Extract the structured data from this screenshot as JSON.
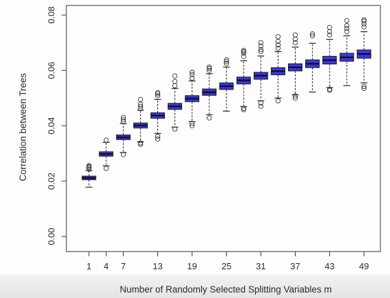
{
  "chart_data": {
    "type": "boxplot",
    "title": "",
    "xlabel": "Number of Randomly Selected Splitting Variables m",
    "ylabel": "Correlation between Trees",
    "ylim": [
      0,
      0.08
    ],
    "y_ticks": [
      0.0,
      0.02,
      0.04,
      0.06,
      0.08
    ],
    "y_tick_labels": [
      "0.00",
      "0.02",
      "0.04",
      "0.06",
      "0.08"
    ],
    "x_tick_labels": [
      "1",
      "4",
      "7",
      "13",
      "19",
      "25",
      "31",
      "37",
      "43",
      "49"
    ],
    "x_tick_values": [
      1,
      4,
      7,
      13,
      19,
      25,
      31,
      37,
      43,
      49
    ],
    "box_color": "#3a36e6",
    "box_edge_color": "#1a1a1a",
    "grid": false,
    "boxes": [
      {
        "m": 1,
        "q1": 0.0205,
        "median": 0.0211,
        "q3": 0.0218,
        "lo": 0.0178,
        "hi": 0.0238,
        "outliers": [
          0.0243,
          0.0249,
          0.0252,
          0.0256
        ]
      },
      {
        "m": 4,
        "q1": 0.029,
        "median": 0.0298,
        "q3": 0.0306,
        "lo": 0.0255,
        "hi": 0.034,
        "outliers": [
          0.0246,
          0.0348
        ]
      },
      {
        "m": 7,
        "q1": 0.035,
        "median": 0.0358,
        "q3": 0.0367,
        "lo": 0.0303,
        "hi": 0.0408,
        "outliers": [
          0.0296,
          0.0415,
          0.0422,
          0.043
        ]
      },
      {
        "m": 10,
        "q1": 0.0392,
        "median": 0.0401,
        "q3": 0.041,
        "lo": 0.0342,
        "hi": 0.0456,
        "outliers": [
          0.0333,
          0.0338,
          0.0462,
          0.047,
          0.0478,
          0.0495
        ]
      },
      {
        "m": 13,
        "q1": 0.0427,
        "median": 0.0437,
        "q3": 0.0447,
        "lo": 0.0372,
        "hi": 0.0495,
        "outliers": [
          0.0352,
          0.0362,
          0.0508,
          0.0515,
          0.052
        ]
      },
      {
        "m": 16,
        "q1": 0.0459,
        "median": 0.047,
        "q3": 0.0481,
        "lo": 0.0395,
        "hi": 0.0535,
        "outliers": [
          0.0388,
          0.0545,
          0.056,
          0.058
        ]
      },
      {
        "m": 19,
        "q1": 0.0487,
        "median": 0.0498,
        "q3": 0.0509,
        "lo": 0.0415,
        "hi": 0.0562,
        "outliers": [
          0.04,
          0.0408,
          0.0572,
          0.0585,
          0.0593
        ]
      },
      {
        "m": 22,
        "q1": 0.051,
        "median": 0.0521,
        "q3": 0.0533,
        "lo": 0.044,
        "hi": 0.0588,
        "outliers": [
          0.0428,
          0.06,
          0.0607,
          0.0612
        ]
      },
      {
        "m": 25,
        "q1": 0.0531,
        "median": 0.0543,
        "q3": 0.0555,
        "lo": 0.0453,
        "hi": 0.0612,
        "outliers": [
          0.0625,
          0.0632,
          0.0638
        ]
      },
      {
        "m": 28,
        "q1": 0.0551,
        "median": 0.0564,
        "q3": 0.0576,
        "lo": 0.047,
        "hi": 0.0635,
        "outliers": [
          0.0458,
          0.0463,
          0.065,
          0.0662,
          0.0668,
          0.0672
        ]
      },
      {
        "m": 31,
        "q1": 0.0568,
        "median": 0.0581,
        "q3": 0.0593,
        "lo": 0.049,
        "hi": 0.0652,
        "outliers": [
          0.047,
          0.0482,
          0.0668,
          0.0675,
          0.0688,
          0.07
        ]
      },
      {
        "m": 34,
        "q1": 0.0584,
        "median": 0.0597,
        "q3": 0.061,
        "lo": 0.05,
        "hi": 0.0668,
        "outliers": [
          0.049,
          0.068,
          0.0692,
          0.0705,
          0.0722
        ]
      },
      {
        "m": 37,
        "q1": 0.0598,
        "median": 0.0611,
        "q3": 0.0624,
        "lo": 0.0512,
        "hi": 0.0684,
        "outliers": [
          0.05,
          0.0508,
          0.07,
          0.0713,
          0.0728
        ]
      },
      {
        "m": 40,
        "q1": 0.061,
        "median": 0.0624,
        "q3": 0.0638,
        "lo": 0.0522,
        "hi": 0.0698,
        "outliers": [
          0.0725,
          0.0732
        ]
      },
      {
        "m": 43,
        "q1": 0.0623,
        "median": 0.0637,
        "q3": 0.0651,
        "lo": 0.0538,
        "hi": 0.0712,
        "outliers": [
          0.0528,
          0.0532,
          0.0728,
          0.074,
          0.0755
        ]
      },
      {
        "m": 46,
        "q1": 0.0633,
        "median": 0.0647,
        "q3": 0.0662,
        "lo": 0.0545,
        "hi": 0.0725,
        "outliers": [
          0.074,
          0.0752,
          0.0762,
          0.078
        ]
      },
      {
        "m": 49,
        "q1": 0.0644,
        "median": 0.0659,
        "q3": 0.0674,
        "lo": 0.0555,
        "hi": 0.074,
        "outliers": [
          0.0535,
          0.0542,
          0.0757,
          0.0768,
          0.0778,
          0.0783
        ]
      }
    ]
  }
}
